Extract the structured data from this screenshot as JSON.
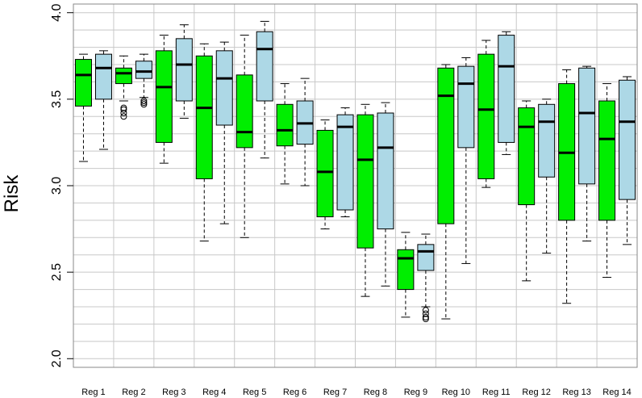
{
  "chart_data": {
    "type": "boxplot",
    "ylabel": "Risk",
    "xlabel": "",
    "ylim": [
      1.95,
      4.05
    ],
    "yticks": [
      2.0,
      2.5,
      3.0,
      3.5,
      4.0
    ],
    "yticklabels": [
      "2.0",
      "2.5",
      "3.0",
      "3.5",
      "4.0"
    ],
    "grid": true,
    "categories": [
      "Reg 1",
      "Reg 2",
      "Reg 3",
      "Reg 4",
      "Reg 5",
      "Reg 6",
      "Reg 7",
      "Reg 8",
      "Reg 9",
      "Reg 10",
      "Reg 11",
      "Reg 12",
      "Reg 13",
      "Reg 14"
    ],
    "series": [
      {
        "color": "#00ee00",
        "boxes": [
          {
            "whisker_low": 3.14,
            "q1": 3.46,
            "median": 3.64,
            "q3": 3.73,
            "whisker_high": 3.76,
            "outliers": []
          },
          {
            "whisker_low": 3.49,
            "q1": 3.59,
            "median": 3.65,
            "q3": 3.68,
            "whisker_high": 3.75,
            "outliers": [
              3.4,
              3.42,
              3.44,
              3.45
            ]
          },
          {
            "whisker_low": 3.13,
            "q1": 3.25,
            "median": 3.57,
            "q3": 3.78,
            "whisker_high": 3.87,
            "outliers": []
          },
          {
            "whisker_low": 2.68,
            "q1": 3.04,
            "median": 3.45,
            "q3": 3.75,
            "whisker_high": 3.82,
            "outliers": []
          },
          {
            "whisker_low": 2.7,
            "q1": 3.22,
            "median": 3.31,
            "q3": 3.64,
            "whisker_high": 3.87,
            "outliers": []
          },
          {
            "whisker_low": 3.01,
            "q1": 3.23,
            "median": 3.32,
            "q3": 3.47,
            "whisker_high": 3.59,
            "outliers": []
          },
          {
            "whisker_low": 2.75,
            "q1": 2.82,
            "median": 3.08,
            "q3": 3.32,
            "whisker_high": 3.38,
            "outliers": []
          },
          {
            "whisker_low": 2.36,
            "q1": 2.64,
            "median": 3.15,
            "q3": 3.41,
            "whisker_high": 3.47,
            "outliers": []
          },
          {
            "whisker_low": 2.24,
            "q1": 2.4,
            "median": 2.58,
            "q3": 2.63,
            "whisker_high": 2.73,
            "outliers": []
          },
          {
            "whisker_low": 2.23,
            "q1": 2.78,
            "median": 3.52,
            "q3": 3.68,
            "whisker_high": 3.7,
            "outliers": []
          },
          {
            "whisker_low": 2.99,
            "q1": 3.04,
            "median": 3.44,
            "q3": 3.76,
            "whisker_high": 3.84,
            "outliers": []
          },
          {
            "whisker_low": 2.45,
            "q1": 2.89,
            "median": 3.34,
            "q3": 3.45,
            "whisker_high": 3.49,
            "outliers": []
          },
          {
            "whisker_low": 2.32,
            "q1": 2.8,
            "median": 3.19,
            "q3": 3.59,
            "whisker_high": 3.67,
            "outliers": []
          },
          {
            "whisker_low": 2.47,
            "q1": 2.8,
            "median": 3.27,
            "q3": 3.49,
            "whisker_high": 3.59,
            "outliers": []
          }
        ]
      },
      {
        "color": "#add8e6",
        "boxes": [
          {
            "whisker_low": 3.21,
            "q1": 3.5,
            "median": 3.68,
            "q3": 3.76,
            "whisker_high": 3.78,
            "outliers": []
          },
          {
            "whisker_low": 3.51,
            "q1": 3.62,
            "median": 3.66,
            "q3": 3.72,
            "whisker_high": 3.76,
            "outliers": [
              3.47,
              3.48,
              3.49
            ]
          },
          {
            "whisker_low": 3.39,
            "q1": 3.49,
            "median": 3.7,
            "q3": 3.85,
            "whisker_high": 3.93,
            "outliers": []
          },
          {
            "whisker_low": 2.78,
            "q1": 3.35,
            "median": 3.62,
            "q3": 3.78,
            "whisker_high": 3.83,
            "outliers": []
          },
          {
            "whisker_low": 3.16,
            "q1": 3.49,
            "median": 3.79,
            "q3": 3.89,
            "whisker_high": 3.95,
            "outliers": []
          },
          {
            "whisker_low": 3.0,
            "q1": 3.24,
            "median": 3.36,
            "q3": 3.49,
            "whisker_high": 3.62,
            "outliers": []
          },
          {
            "whisker_low": 2.82,
            "q1": 2.86,
            "median": 3.34,
            "q3": 3.41,
            "whisker_high": 3.45,
            "outliers": []
          },
          {
            "whisker_low": 2.42,
            "q1": 2.75,
            "median": 3.22,
            "q3": 3.42,
            "whisker_high": 3.48,
            "outliers": []
          },
          {
            "whisker_low": 2.3,
            "q1": 2.51,
            "median": 2.62,
            "q3": 2.66,
            "whisker_high": 2.72,
            "outliers": [
              2.23,
              2.24,
              2.26,
              2.28
            ]
          },
          {
            "whisker_low": 2.55,
            "q1": 3.22,
            "median": 3.59,
            "q3": 3.69,
            "whisker_high": 3.74,
            "outliers": []
          },
          {
            "whisker_low": 3.18,
            "q1": 3.25,
            "median": 3.69,
            "q3": 3.87,
            "whisker_high": 3.89,
            "outliers": []
          },
          {
            "whisker_low": 2.61,
            "q1": 3.05,
            "median": 3.37,
            "q3": 3.47,
            "whisker_high": 3.5,
            "outliers": []
          },
          {
            "whisker_low": 2.68,
            "q1": 3.01,
            "median": 3.42,
            "q3": 3.68,
            "whisker_high": 3.69,
            "outliers": []
          },
          {
            "whisker_low": 2.66,
            "q1": 2.92,
            "median": 3.37,
            "q3": 3.61,
            "whisker_high": 3.63,
            "outliers": []
          }
        ]
      }
    ]
  }
}
